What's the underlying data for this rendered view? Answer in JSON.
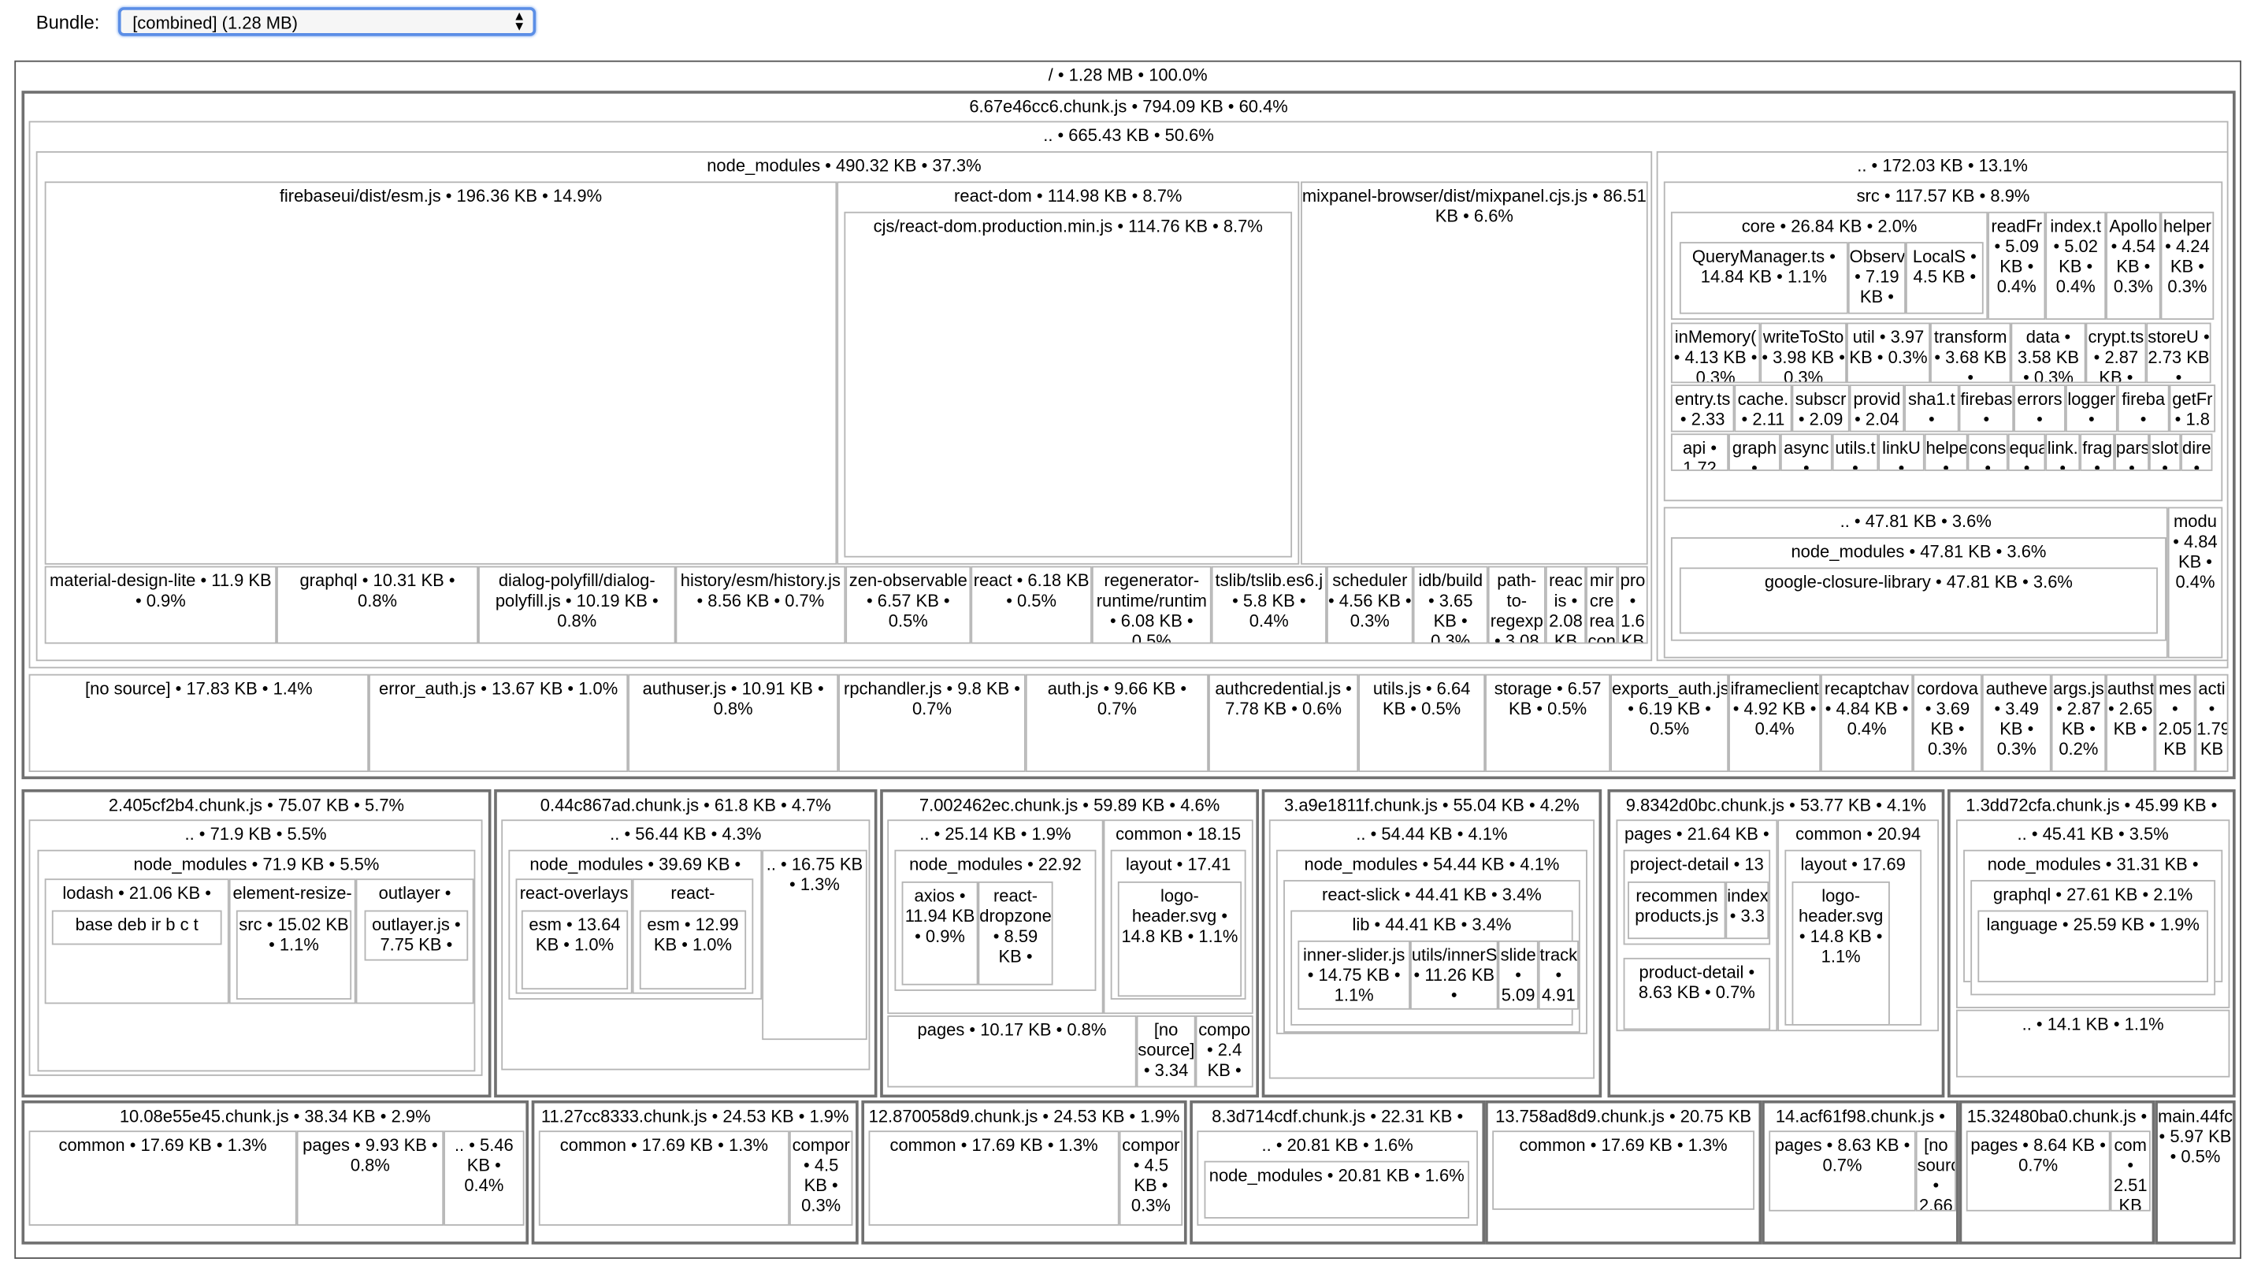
{
  "header": {
    "bundle_label": "Bundle:",
    "bundle_selected": "[combined] (1.28 MB)"
  },
  "colors": {
    "select_border": "#5b8ee6",
    "chunk_border": "#707070",
    "node_border": "#b5b5b5"
  },
  "nodes": [
    "/ • 1.28 MB • 100.0%",
    "6.67e46cc6.chunk.js • 794.09 KB • 60.4%",
    ".. • 665.43 KB • 50.6%",
    "node_modules • 490.32 KB • 37.3%",
    "firebaseui/dist/esm.js • 196.36 KB • 14.9%",
    "react-dom • 114.98 KB • 8.7%",
    "cjs/react-dom.production.min.js • 114.76 KB • 8.7%",
    "mixpanel-browser/dist/mixpanel.cjs.js • 86.51 KB • 6.6%",
    "material-design-lite • 11.9 KB • 0.9%",
    "graphql • 10.31 KB • 0.8%",
    "dialog-polyfill/dialog-polyfill.js • 10.19 KB • 0.8%",
    "history/esm/history.js • 8.56 KB • 0.7%",
    "zen-observable • 6.57 KB • 0.5%",
    "react • 6.18 KB • 0.5%",
    "regenerator-runtime/runtim • 6.08 KB • 0.5%",
    "tslib/tslib.es6.j • 5.8 KB • 0.4%",
    "scheduler • 4.56 KB • 0.3%",
    "idb/build • 3.65 KB • 0.3%",
    "path-to-regexp • 3.08 KB",
    "reac is • 2.08 KB",
    "mir cre rea con",
    "pro • 1.6 KB",
    ".. • 172.03 KB • 13.1%",
    "src • 117.57 KB • 8.9%",
    "core • 26.84 KB • 2.0%",
    "QueryManager.ts • 14.84 KB • 1.1%",
    "Observab • 7.19 KB •",
    "LocalS • 4.5 KB •",
    "readFr • 5.09 KB • 0.4%",
    "index.t • 5.02 KB • 0.4%",
    "Apollo • 4.54 KB • 0.3%",
    "helper • 4.24 KB • 0.3%",
    "inMemory( • 4.13 KB • 0.3%",
    "writeToSto • 3.98 KB • 0.3%",
    "util • 3.97 KB • 0.3%",
    "transform • 3.68 KB •",
    "data • 3.58 KB • 0.3%",
    "crypt.ts • 2.87 KB •",
    "storeU • 2.73 KB •",
    "entry.ts • 2.33",
    "cache. • 2.11",
    "subscr • 2.09",
    "provid • 2.04",
    "sha1.t •",
    "firebas •",
    "errors •",
    "logger •",
    "fireba •",
    "getFr • 1.8",
    "api • 1.72",
    "graph •",
    "async •",
    "utils.t •",
    "linkU •",
    "helpe •",
    "cons •",
    "equa •",
    "link. •",
    "frag •",
    "pars •",
    "slot •",
    "dire •",
    ".. • 47.81 KB • 3.6%",
    "node_modules • 47.81 KB • 3.6%",
    "google-closure-library • 47.81 KB • 3.6%",
    "modu • 4.84 KB • 0.4%",
    "[no source] • 17.83 KB • 1.4%",
    "error_auth.js • 13.67 KB • 1.0%",
    "authuser.js • 10.91 KB • 0.8%",
    "rpchandler.js • 9.8 KB • 0.7%",
    "auth.js • 9.66 KB • 0.7%",
    "authcredential.js • 7.78 KB • 0.6%",
    "utils.js • 6.64 KB • 0.5%",
    "storage • 6.57 KB • 0.5%",
    "exports_auth.js • 6.19 KB • 0.5%",
    "iframeclient • 4.92 KB • 0.4%",
    "recaptchav • 4.84 KB • 0.4%",
    "cordova • 3.69 KB • 0.3%",
    "autheve • 3.49 KB • 0.3%",
    "args.js • 2.87 KB • 0.2%",
    "authst • 2.65 KB •",
    "mes • 2.05 KB",
    "acti • 1.79 KB",
    "2.405cf2b4.chunk.js • 75.07 KB • 5.7%",
    ".. • 71.9 KB • 5.5%",
    "node_modules • 71.9 KB • 5.5%",
    "lodash • 21.06 KB •",
    "base deb ir b c t",
    "element-resize-",
    "src • 15.02 KB • 1.1%",
    "outlayer •",
    "outlayer.js • 7.75 KB •",
    "0.44c867ad.chunk.js • 61.8 KB • 4.7%",
    ".. • 56.44 KB • 4.3%",
    "node_modules • 39.69 KB •",
    "react-overlays",
    "esm • 13.64 KB • 1.0%",
    "react-",
    "esm • 12.99 KB • 1.0%",
    ".. • 16.75 KB • 1.3%",
    "7.002462ec.chunk.js • 59.89 KB • 4.6%",
    ".. • 25.14 KB • 1.9%",
    "node_modules • 22.92",
    "axios • 11.94 KB • 0.9%",
    "react-dropzone • 8.59 KB •",
    "common • 18.15",
    "layout • 17.41",
    "logo-header.svg • 14.8 KB • 1.1%",
    "pages • 10.17 KB • 0.8%",
    "[no source] • 3.34",
    "compo • 2.4 KB •",
    "3.a9e1811f.chunk.js • 55.04 KB • 4.2%",
    ".. • 54.44 KB • 4.1%",
    "node_modules • 54.44 KB • 4.1%",
    "react-slick • 44.41 KB • 3.4%",
    "lib • 44.41 KB • 3.4%",
    "inner-slider.js • 14.75 KB • 1.1%",
    "utils/innerS • 11.26 KB •",
    "slide • 5.09",
    "track • 4.91",
    "9.8342d0bc.chunk.js • 53.77 KB • 4.1%",
    "pages • 21.64 KB •",
    "project-detail • 13",
    "recommen products.js",
    "index • 3.3",
    "product-detail • 8.63 KB • 0.7%",
    "common • 20.94",
    "layout • 17.69",
    "logo-header.svg • 14.8 KB • 1.1%",
    "1.3dd72cfa.chunk.js • 45.99 KB •",
    ".. • 45.41 KB • 3.5%",
    "node_modules • 31.31 KB •",
    "graphql • 27.61 KB • 2.1%",
    "language • 25.59 KB • 1.9%",
    ".. • 14.1 KB • 1.1%",
    "10.08e55e45.chunk.js • 38.34 KB • 2.9%",
    "common • 17.69 KB • 1.3%",
    "pages • 9.93 KB • 0.8%",
    ".. • 5.46 KB • 0.4%",
    "11.27cc8333.chunk.js • 24.53 KB • 1.9%",
    "common • 17.69 KB • 1.3%",
    "compor • 4.5 KB • 0.3%",
    "12.870058d9.chunk.js • 24.53 KB • 1.9%",
    "common • 17.69 KB • 1.3%",
    "compor • 4.5 KB • 0.3%",
    "8.3d714cdf.chunk.js • 22.31 KB •",
    ".. • 20.81 KB • 1.6%",
    "node_modules • 20.81 KB • 1.6%",
    "13.758ad8d9.chunk.js • 20.75 KB",
    "common • 17.69 KB • 1.3%",
    "14.acf61f98.chunk.js •",
    "pages • 8.63 KB • 0.7%",
    "[no source] • 2.66",
    "15.32480ba0.chunk.js •",
    "pages • 8.64 KB • 0.7%",
    "com • 2.51 KB",
    "main.44fc • 5.97 KB • 0.5%"
  ]
}
